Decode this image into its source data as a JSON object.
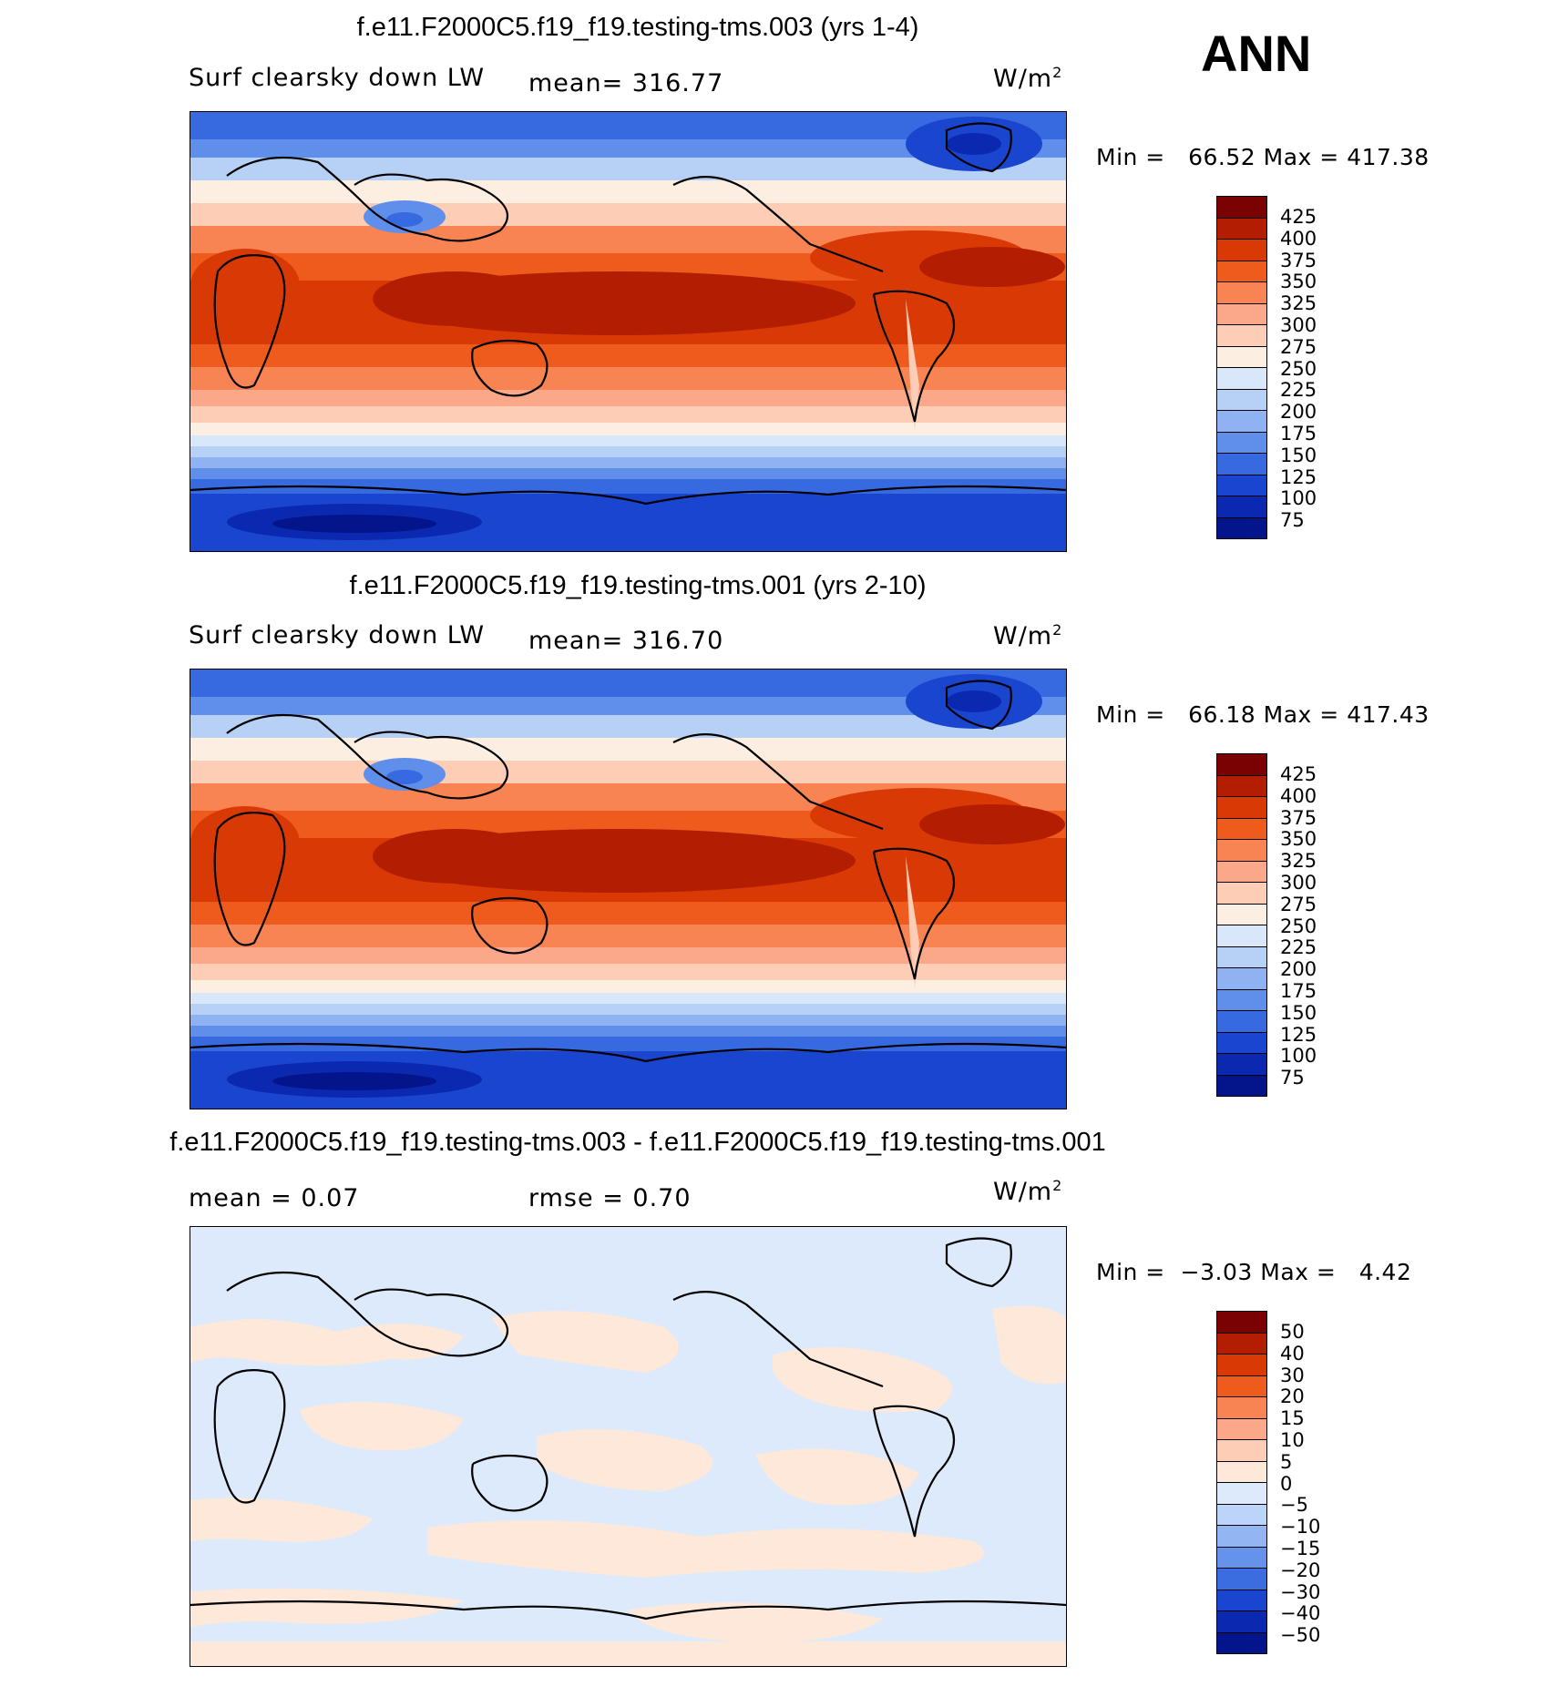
{
  "season": "ANN",
  "panels": [
    {
      "title": "f.e11.F2000C5.f19_f19.testing-tms.003 (yrs 1-4)",
      "variable": "Surf clearsky down LW",
      "stat_left": "",
      "stat_mid": "mean=  316.77",
      "units": "W/m",
      "units_sup": "2",
      "min_label": "Min =",
      "min_value": "66.52",
      "max_label": "Max =",
      "max_value": "417.38",
      "levels": [
        "425",
        "400",
        "375",
        "350",
        "325",
        "300",
        "275",
        "250",
        "225",
        "200",
        "175",
        "150",
        "125",
        "100",
        "75"
      ]
    },
    {
      "title": "f.e11.F2000C5.f19_f19.testing-tms.001 (yrs 2-10)",
      "variable": "Surf clearsky down LW",
      "stat_left": "",
      "stat_mid": "mean=  316.70",
      "units": "W/m",
      "units_sup": "2",
      "min_label": "Min =",
      "min_value": "66.18",
      "max_label": "Max =",
      "max_value": "417.43",
      "levels": [
        "425",
        "400",
        "375",
        "350",
        "325",
        "300",
        "275",
        "250",
        "225",
        "200",
        "175",
        "150",
        "125",
        "100",
        "75"
      ]
    },
    {
      "title": "f.e11.F2000C5.f19_f19.testing-tms.003 - f.e11.F2000C5.f19_f19.testing-tms.001",
      "variable": "",
      "stat_left": "mean =    0.07",
      "stat_mid": "rmse =    0.70",
      "units": "W/m",
      "units_sup": "2",
      "min_label": "Min =",
      "min_value": "−3.03",
      "max_label": "Max =",
      "max_value": "4.42",
      "levels": [
        "50",
        "40",
        "30",
        "20",
        "15",
        "10",
        "5",
        "0",
        "−5",
        "−10",
        "−15",
        "−20",
        "−30",
        "−40",
        "−50"
      ]
    }
  ],
  "colors": {
    "abs_scale": [
      "#7a0202",
      "#b31e02",
      "#d93a05",
      "#ef5b1c",
      "#f78452",
      "#fba88a",
      "#fdcdb6",
      "#fdeee2",
      "#d9e7fa",
      "#b7d0f5",
      "#8fb3f2",
      "#5f8fea",
      "#3769e0",
      "#1a45cf",
      "#0b29b0",
      "#04148a"
    ],
    "diff_scale": [
      "#7a0202",
      "#b31e02",
      "#d93a05",
      "#ef5b1c",
      "#f78452",
      "#fba88a",
      "#fdcdb6",
      "#fde8da",
      "#dceafb",
      "#bcd4f7",
      "#93b6f2",
      "#6592ea",
      "#3b6ce0",
      "#1a45cf",
      "#0b29b0",
      "#04148a"
    ],
    "diff_pos": "#fde8da",
    "diff_neg": "#dceafb"
  }
}
